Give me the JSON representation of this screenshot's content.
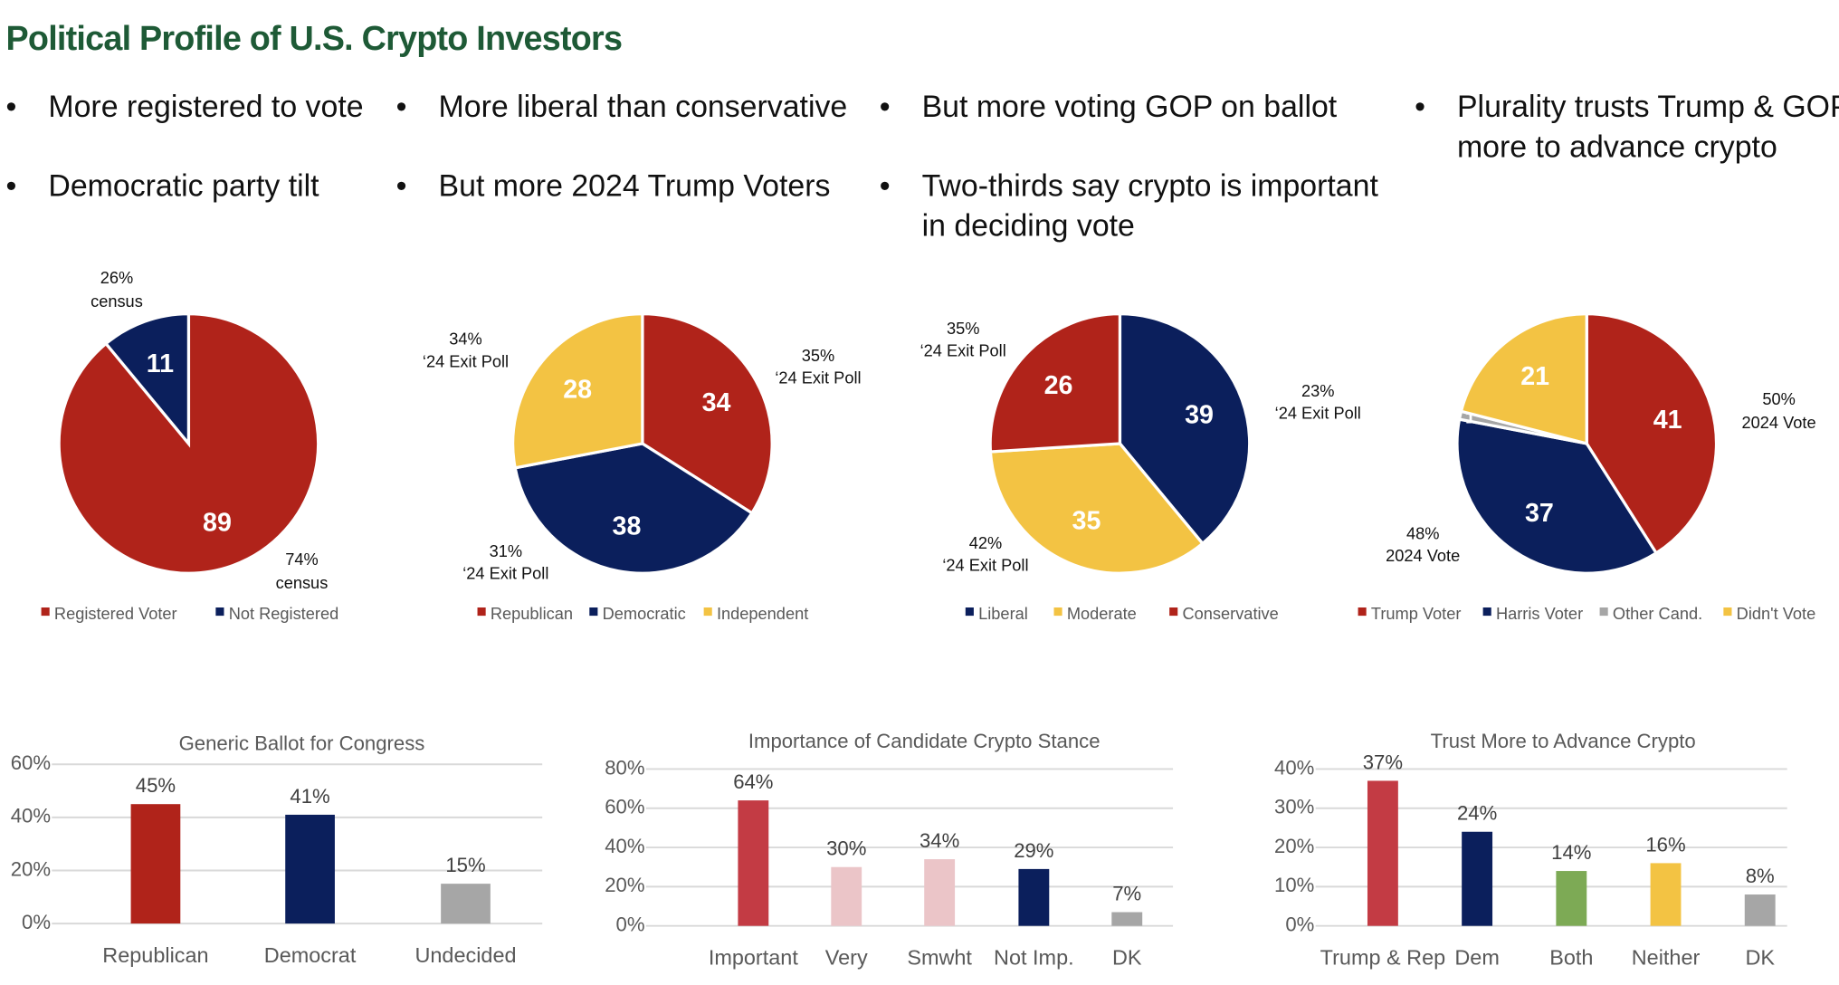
{
  "title": "Political Profile of U.S. Crypto Investors",
  "bullets": [
    {
      "text": "More registered to vote"
    },
    {
      "text": "Democratic party tilt"
    },
    {
      "text": "More liberal than conservative"
    },
    {
      "text": "But more 2024 Trump Voters"
    },
    {
      "text": "But more voting GOP on ballot"
    },
    {
      "line1": "Two-thirds say crypto is important",
      "line2": "in deciding vote"
    },
    {
      "line1": "Plurality trusts Trump & GOP",
      "line2": "more to advance crypto"
    }
  ],
  "colors": {
    "red": "#B0231A",
    "navy": "#0B1F5C",
    "yellow": "#F3C343",
    "gray": "#A6A6A6",
    "rose": "#C33B44",
    "pink": "#EBC5C8",
    "green": "#7DAA55",
    "title_green": "#1E5A36"
  },
  "chart_data": [
    {
      "type": "pie",
      "categories": [
        "Registered Voter",
        "Not Registered"
      ],
      "values": [
        89,
        11
      ],
      "colors": [
        "#B0231A",
        "#0B1F5C"
      ],
      "annotations": [
        {
          "value": "26%",
          "note": "census"
        },
        {
          "value": "74%",
          "note": "census"
        }
      ],
      "legend": "bottom"
    },
    {
      "type": "pie",
      "categories": [
        "Republican",
        "Democratic",
        "Independent"
      ],
      "values": [
        34,
        38,
        28
      ],
      "colors": [
        "#B0231A",
        "#0B1F5C",
        "#F3C343"
      ],
      "annotations": [
        {
          "value": "34%",
          "note": "‘24 Exit Poll"
        },
        {
          "value": "35%",
          "note": "‘24 Exit Poll"
        },
        {
          "value": "31%",
          "note": "‘24 Exit Poll"
        }
      ],
      "legend": "bottom"
    },
    {
      "type": "pie",
      "categories": [
        "Liberal",
        "Moderate",
        "Conservative"
      ],
      "values": [
        39,
        35,
        26
      ],
      "colors": [
        "#0B1F5C",
        "#F3C343",
        "#B0231A"
      ],
      "annotations": [
        {
          "value": "35%",
          "note": "‘24 Exit Poll"
        },
        {
          "value": "23%",
          "note": "‘24 Exit Poll"
        },
        {
          "value": "42%",
          "note": "‘24 Exit Poll"
        }
      ],
      "legend": "bottom"
    },
    {
      "type": "pie",
      "categories": [
        "Trump Voter",
        "Harris Voter",
        "Other Cand.",
        "Didn't Vote"
      ],
      "values": [
        41,
        37,
        1,
        21
      ],
      "colors": [
        "#B0231A",
        "#0B1F5C",
        "#A6A6A6",
        "#F3C343"
      ],
      "annotations": [
        {
          "value": "50%",
          "note": "2024 Vote"
        },
        {
          "value": "48%",
          "note": "2024 Vote"
        }
      ],
      "legend": "bottom"
    },
    {
      "type": "bar",
      "title": "Generic Ballot for Congress",
      "categories": [
        "Republican",
        "Democrat",
        "Undecided"
      ],
      "values": [
        45,
        41,
        15
      ],
      "data_labels": [
        "45%",
        "41%",
        "15%"
      ],
      "colors": [
        "#B0231A",
        "#0B1F5C",
        "#A6A6A6"
      ],
      "ylim": [
        0,
        60
      ],
      "yticks": [
        "0%",
        "20%",
        "40%",
        "60%"
      ],
      "grid": true
    },
    {
      "type": "bar",
      "title": "Importance of Candidate Crypto Stance",
      "categories": [
        "Important",
        "Very",
        "Smwht",
        "Not Imp.",
        "DK"
      ],
      "values": [
        64,
        30,
        34,
        29,
        7
      ],
      "data_labels": [
        "64%",
        "30%",
        "34%",
        "29%",
        "7%"
      ],
      "colors": [
        "#C33B44",
        "#EBC5C8",
        "#EBC5C8",
        "#0B1F5C",
        "#A6A6A6"
      ],
      "ylim": [
        0,
        80
      ],
      "yticks": [
        "0%",
        "20%",
        "40%",
        "60%",
        "80%"
      ],
      "grid": true
    },
    {
      "type": "bar",
      "title": "Trust More to Advance Crypto",
      "categories": [
        "Trump & Rep",
        "Dem",
        "Both",
        "Neither",
        "DK"
      ],
      "values": [
        37,
        24,
        14,
        16,
        8
      ],
      "data_labels": [
        "37%",
        "24%",
        "14%",
        "16%",
        "8%"
      ],
      "colors": [
        "#C33B44",
        "#0B1F5C",
        "#7DAA55",
        "#F3C343",
        "#A6A6A6"
      ],
      "ylim": [
        0,
        40
      ],
      "yticks": [
        "0%",
        "10%",
        "20%",
        "30%",
        "40%"
      ],
      "grid": true
    }
  ]
}
